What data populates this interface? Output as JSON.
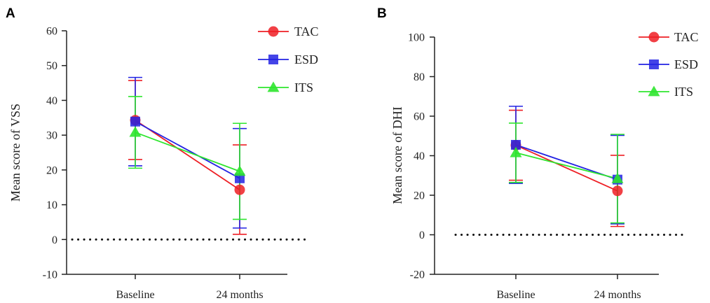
{
  "chart_data": [
    {
      "panel": "A",
      "type": "line",
      "ylabel": "Mean score of VSS",
      "xlabel": "",
      "categories": [
        "Baseline",
        "24 months"
      ],
      "ylim": [
        -10,
        60
      ],
      "yticks": [
        -10,
        0,
        10,
        20,
        30,
        40,
        50,
        60
      ],
      "reference_line": 0,
      "legend_position": "top-right",
      "series": [
        {
          "name": "TAC",
          "color": "#ee1f25",
          "marker": "circle",
          "values": [
            34.3,
            14.3
          ],
          "err_low": [
            23.0,
            1.5
          ],
          "err_high": [
            45.7,
            27.2
          ]
        },
        {
          "name": "ESD",
          "color": "#2323e3",
          "marker": "square",
          "values": [
            33.9,
            17.6
          ],
          "err_low": [
            21.2,
            3.3
          ],
          "err_high": [
            46.6,
            31.9
          ]
        },
        {
          "name": "ITS",
          "color": "#2ee62e",
          "marker": "triangle",
          "values": [
            30.8,
            19.6
          ],
          "err_low": [
            20.5,
            5.8
          ],
          "err_high": [
            41.1,
            33.4
          ]
        }
      ]
    },
    {
      "panel": "B",
      "type": "line",
      "ylabel": "Mean score of DHI",
      "xlabel": "",
      "categories": [
        "Baseline",
        "24 months"
      ],
      "ylim": [
        -20,
        100
      ],
      "yticks": [
        -20,
        0,
        20,
        40,
        60,
        80,
        100
      ],
      "reference_line": 0,
      "legend_position": "top-right",
      "series": [
        {
          "name": "TAC",
          "color": "#ee1f25",
          "marker": "circle",
          "values": [
            45.3,
            22.2
          ],
          "err_low": [
            27.6,
            4.2
          ],
          "err_high": [
            63.0,
            40.2
          ]
        },
        {
          "name": "ESD",
          "color": "#2323e3",
          "marker": "square",
          "values": [
            45.5,
            27.9
          ],
          "err_low": [
            26.0,
            5.5
          ],
          "err_high": [
            65.0,
            50.3
          ]
        },
        {
          "name": "ITS",
          "color": "#2ee62e",
          "marker": "triangle",
          "values": [
            41.5,
            28.4
          ],
          "err_low": [
            26.5,
            6.0
          ],
          "err_high": [
            56.5,
            50.8
          ]
        }
      ]
    }
  ]
}
